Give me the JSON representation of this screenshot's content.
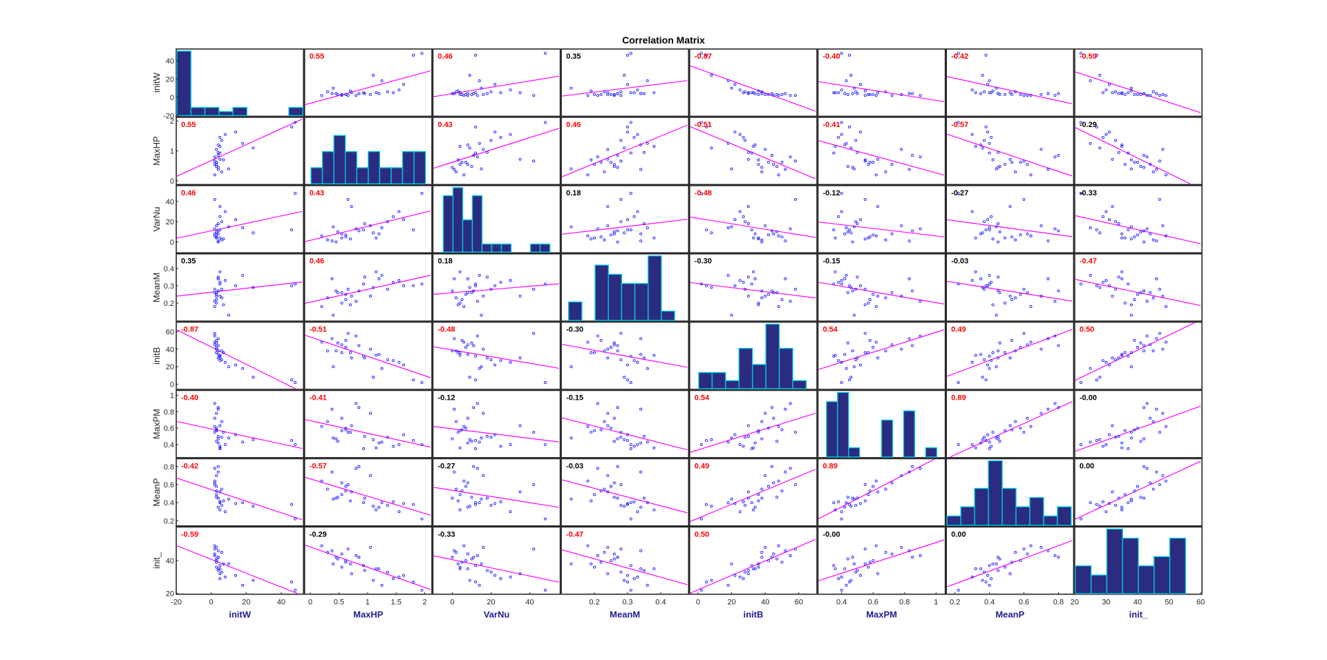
{
  "title": "Correlation Matrix",
  "colors": {
    "bar_fill": "#2b2b80",
    "bar_edge": "#00c8e6",
    "point": "#2020ff",
    "fit_line": "#ff00ff",
    "sig_corr": "#ff0000",
    "nonsig_corr": "#000000",
    "axis_label": "#1f1f8f"
  },
  "variables": [
    "initW",
    "MaxHP",
    "VarNu",
    "MeanM",
    "initB",
    "MaxPM",
    "MeanP",
    "init_"
  ],
  "axes": [
    {
      "label": "initW",
      "range": [
        -20,
        52
      ],
      "ticks": [
        -20,
        0,
        20,
        40
      ],
      "tick_labels": [
        "-20",
        "0",
        "20",
        "40"
      ]
    },
    {
      "label": "MaxHP",
      "range": [
        -0.1,
        2.1
      ],
      "ticks": [
        0,
        0.5,
        1,
        1.5,
        2
      ],
      "y_ticks": [
        0,
        1,
        2
      ],
      "tick_labels": [
        "0",
        "0.5",
        "1",
        "1.5",
        "2"
      ]
    },
    {
      "label": "VarNu",
      "range": [
        -10,
        55
      ],
      "ticks": [
        0,
        20,
        40
      ],
      "tick_labels": [
        "0",
        "20",
        "40"
      ]
    },
    {
      "label": "MeanM",
      "range": [
        0.1,
        0.48
      ],
      "ticks": [
        0.2,
        0.3,
        0.4
      ],
      "tick_labels": [
        "0.2",
        "0.3",
        "0.4"
      ]
    },
    {
      "label": "initB",
      "range": [
        -5,
        70
      ],
      "ticks": [
        0,
        20,
        40,
        60
      ],
      "tick_labels": [
        "0",
        "20",
        "40",
        "60"
      ]
    },
    {
      "label": "MaxPM",
      "range": [
        0.25,
        1.05
      ],
      "ticks": [
        0.4,
        0.6,
        0.8,
        1
      ],
      "tick_labels": [
        "0.4",
        "0.6",
        "0.8",
        "1"
      ]
    },
    {
      "label": "MeanP",
      "range": [
        0.15,
        0.88
      ],
      "ticks": [
        0.2,
        0.4,
        0.6,
        0.8
      ],
      "tick_labels": [
        "0.2",
        "0.4",
        "0.6",
        "0.8"
      ]
    },
    {
      "label": "init_",
      "range": [
        20,
        60
      ],
      "ticks": [
        20,
        30,
        40,
        50,
        60
      ],
      "y_ticks": [
        20,
        40
      ],
      "tick_labels": [
        "20",
        "30",
        "40",
        "50",
        "60"
      ]
    }
  ],
  "chart_data": {
    "type": "scatter-matrix",
    "title": "Correlation Matrix",
    "variables": [
      "initW",
      "MaxHP",
      "VarNu",
      "MeanM",
      "initB",
      "MaxPM",
      "MeanP",
      "init_"
    ],
    "correlations": [
      [
        null,
        0.55,
        0.46,
        0.35,
        -0.87,
        -0.4,
        -0.42,
        -0.59
      ],
      [
        0.55,
        null,
        0.43,
        0.46,
        -0.51,
        -0.41,
        -0.57,
        -0.29
      ],
      [
        0.46,
        0.43,
        null,
        0.18,
        -0.48,
        -0.12,
        -0.27,
        -0.33
      ],
      [
        0.35,
        0.46,
        0.18,
        null,
        -0.3,
        -0.15,
        -0.03,
        -0.47
      ],
      [
        -0.87,
        -0.51,
        -0.48,
        -0.3,
        null,
        0.54,
        0.49,
        0.5
      ],
      [
        -0.4,
        -0.41,
        -0.12,
        -0.15,
        0.54,
        null,
        0.89,
        -0.0
      ],
      [
        -0.42,
        -0.57,
        -0.27,
        -0.03,
        0.49,
        0.89,
        null,
        0.0
      ],
      [
        -0.59,
        -0.29,
        -0.33,
        -0.47,
        0.5,
        -0.0,
        0.0,
        null
      ]
    ],
    "correlation_labels": [
      [
        "",
        "0.55",
        "0.46",
        "0.35",
        "-0.87",
        "-0.40",
        "-0.42",
        "-0.59"
      ],
      [
        "0.55",
        "",
        "0.43",
        "0.46",
        "-0.51",
        "-0.41",
        "-0.57",
        "-0.29"
      ],
      [
        "0.46",
        "0.43",
        "",
        "0.18",
        "-0.48",
        "-0.12",
        "-0.27",
        "-0.33"
      ],
      [
        "0.35",
        "0.46",
        "0.18",
        "",
        "-0.30",
        "-0.15",
        "-0.03",
        "-0.47"
      ],
      [
        "-0.87",
        "-0.51",
        "-0.48",
        "-0.30",
        "",
        "0.54",
        "0.49",
        "0.50"
      ],
      [
        "-0.40",
        "-0.41",
        "-0.12",
        "-0.15",
        "0.54",
        "",
        "0.89",
        "-0.00"
      ],
      [
        "-0.42",
        "-0.57",
        "-0.27",
        "-0.03",
        "0.49",
        "0.89",
        "",
        "0.00"
      ],
      [
        "-0.59",
        "-0.29",
        "-0.33",
        "-0.47",
        "0.50",
        "-0.00",
        "0.00",
        ""
      ]
    ],
    "significant": [
      [
        false,
        true,
        true,
        false,
        true,
        true,
        true,
        true
      ],
      [
        true,
        false,
        true,
        true,
        true,
        true,
        true,
        false
      ],
      [
        true,
        true,
        false,
        false,
        true,
        false,
        false,
        false
      ],
      [
        false,
        true,
        false,
        false,
        false,
        false,
        false,
        true
      ],
      [
        true,
        true,
        true,
        false,
        false,
        true,
        true,
        true
      ],
      [
        true,
        true,
        false,
        false,
        true,
        false,
        true,
        false
      ],
      [
        true,
        true,
        false,
        false,
        true,
        true,
        false,
        false
      ],
      [
        true,
        false,
        false,
        true,
        true,
        false,
        false,
        false
      ]
    ],
    "histograms": [
      {
        "edges": [
          -20,
          -12,
          -4,
          4,
          12,
          20,
          28,
          36,
          44,
          52
        ],
        "counts": [
          16,
          2,
          2,
          1,
          2,
          0,
          0,
          0,
          2
        ]
      },
      {
        "edges": [
          0,
          0.2,
          0.4,
          0.6,
          0.8,
          1.0,
          1.2,
          1.4,
          1.6,
          1.8,
          2.0
        ],
        "counts": [
          1,
          2,
          3,
          2,
          1,
          2,
          1,
          1,
          2,
          2
        ]
      },
      {
        "edges": [
          -5,
          0,
          5,
          10,
          15,
          20,
          25,
          30,
          35,
          40,
          45,
          50
        ],
        "counts": [
          7,
          8,
          4,
          7,
          1,
          1,
          1,
          0,
          0,
          1,
          1
        ]
      },
      {
        "edges": [
          0.12,
          0.16,
          0.2,
          0.24,
          0.28,
          0.32,
          0.36,
          0.4,
          0.44
        ],
        "counts": [
          2,
          0,
          6,
          5,
          4,
          4,
          7,
          1
        ]
      },
      {
        "edges": [
          0,
          8,
          16,
          24,
          32,
          40,
          48,
          56,
          64
        ],
        "counts": [
          2,
          2,
          1,
          5,
          3,
          8,
          5,
          1
        ]
      },
      {
        "edges": [
          0.3,
          0.37,
          0.44,
          0.51,
          0.58,
          0.65,
          0.72,
          0.79,
          0.86,
          0.93,
          1.0
        ],
        "counts": [
          6,
          7,
          1,
          0,
          0,
          4,
          0,
          5,
          0,
          1
        ]
      },
      {
        "edges": [
          0.15,
          0.23,
          0.31,
          0.39,
          0.47,
          0.55,
          0.63,
          0.71,
          0.79,
          0.87
        ],
        "counts": [
          1,
          2,
          4,
          7,
          4,
          2,
          3,
          1,
          2
        ]
      },
      {
        "edges": [
          20,
          25,
          30,
          35,
          40,
          45,
          50,
          55,
          60
        ],
        "counts": [
          3,
          2,
          7,
          6,
          3,
          4,
          6,
          0
        ]
      }
    ],
    "hist_max": [
      16,
      4,
      8,
      7,
      8,
      7,
      7,
      7
    ],
    "samples": [
      [
        3,
        0.62,
        5,
        0.22,
        50,
        0.58,
        0.53,
        39
      ],
      [
        4,
        0.45,
        0,
        0.27,
        38,
        0.47,
        0.45,
        42
      ],
      [
        5,
        0.93,
        12,
        0.31,
        32,
        0.35,
        0.4,
        37
      ],
      [
        2,
        0.55,
        8,
        0.26,
        45,
        0.72,
        0.62,
        44
      ],
      [
        6,
        1.35,
        20,
        0.28,
        28,
        0.49,
        0.37,
        33
      ],
      [
        3,
        1.05,
        16,
        0.24,
        40,
        0.78,
        0.7,
        48
      ],
      [
        7,
        0.7,
        3,
        0.19,
        36,
        0.55,
        0.42,
        38
      ],
      [
        4,
        0.38,
        1,
        0.34,
        52,
        0.83,
        0.74,
        46
      ],
      [
        14,
        1.63,
        22,
        0.3,
        22,
        0.52,
        0.39,
        31
      ],
      [
        3,
        0.48,
        10,
        0.26,
        47,
        0.44,
        0.46,
        41
      ],
      [
        5,
        1.15,
        4,
        0.38,
        33,
        0.36,
        0.32,
        35
      ],
      [
        2,
        0.8,
        13,
        0.21,
        55,
        0.9,
        0.78,
        43
      ],
      [
        8,
        1.55,
        30,
        0.33,
        25,
        0.4,
        0.3,
        30
      ],
      [
        3,
        0.62,
        7,
        0.25,
        42,
        0.6,
        0.58,
        40
      ],
      [
        24,
        1.1,
        9,
        0.29,
        8,
        0.46,
        0.36,
        28
      ],
      [
        6,
        0.3,
        2,
        0.23,
        38,
        0.68,
        0.55,
        45
      ],
      [
        4,
        0.95,
        18,
        0.35,
        30,
        0.5,
        0.45,
        34
      ],
      [
        2,
        0.2,
        6,
        0.18,
        48,
        0.62,
        0.64,
        49
      ],
      [
        5,
        1.45,
        25,
        0.32,
        27,
        0.38,
        0.41,
        29
      ],
      [
        4,
        0.85,
        11,
        0.27,
        44,
        0.85,
        0.8,
        42
      ],
      [
        18,
        1.25,
        14,
        0.36,
        18,
        0.43,
        0.4,
        25
      ],
      [
        3,
        0.55,
        4,
        0.2,
        36,
        0.57,
        0.49,
        36
      ],
      [
        46,
        1.8,
        12,
        0.3,
        5,
        0.45,
        0.38,
        27
      ],
      [
        48,
        1.95,
        48,
        0.31,
        2,
        0.4,
        0.22,
        22
      ],
      [
        5,
        0.72,
        35,
        0.24,
        30,
        0.63,
        0.52,
        32
      ],
      [
        10,
        0.4,
        15,
        0.13,
        20,
        0.48,
        0.44,
        38
      ],
      [
        2,
        0.66,
        42,
        0.28,
        58,
        0.55,
        0.6,
        47
      ],
      [
        4,
        1.2,
        8,
        0.34,
        34,
        0.42,
        0.35,
        35
      ]
    ]
  }
}
